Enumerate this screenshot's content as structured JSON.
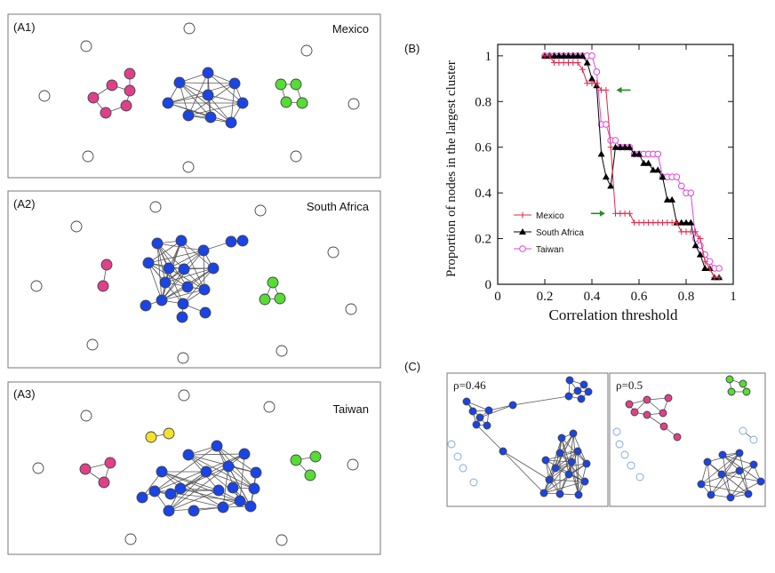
{
  "panels": {
    "a1": {
      "label": "(A1)",
      "country": "Mexico"
    },
    "a2": {
      "label": "(A2)",
      "country": "South Africa"
    },
    "a3": {
      "label": "(A3)",
      "country": "Taiwan"
    },
    "b": {
      "label": "(B)"
    },
    "c": {
      "label": "(C)",
      "sub_left": "ρ=0.46",
      "sub_right": "ρ=0.5"
    }
  },
  "colors": {
    "mexico": "#e0284a",
    "south_africa": "#000000",
    "taiwan": "#dd44dd",
    "cluster_blue": "#1a44e6",
    "cluster_pink": "#e0408a",
    "cluster_green": "#55dd33",
    "cluster_yellow": "#f2e22a",
    "isolated_light_blue": "#7ea8d8",
    "arrow_green": "#2a8a2a"
  },
  "chart_data": {
    "type": "line",
    "title": "",
    "xlabel": "Correlation threshold",
    "ylabel": "Proportion of nodes in the largest cluster",
    "xlim": [
      0,
      1
    ],
    "ylim": [
      0,
      1.05
    ],
    "xticks": [
      0,
      0.2,
      0.4,
      0.6,
      0.8,
      1
    ],
    "xtick_labels": [
      "0",
      "0.2",
      "0.4",
      "0.6",
      "0.8",
      "1"
    ],
    "yticks": [
      0,
      0.2,
      0.4,
      0.6,
      0.8,
      1
    ],
    "ytick_labels": [
      "0",
      "0.2",
      "0.4",
      "0.6",
      "0.8",
      "1"
    ],
    "legend_position": "lower-left",
    "annotations": [
      {
        "type": "arrow",
        "x": 0.5,
        "y": 0.85,
        "direction": "left"
      },
      {
        "type": "arrow",
        "x": 0.46,
        "y": 0.31,
        "direction": "right"
      }
    ],
    "series": [
      {
        "name": "Mexico",
        "marker": "plus",
        "x": [
          0.2,
          0.22,
          0.24,
          0.26,
          0.28,
          0.3,
          0.32,
          0.34,
          0.36,
          0.38,
          0.4,
          0.42,
          0.44,
          0.46,
          0.48,
          0.5,
          0.52,
          0.54,
          0.56,
          0.58,
          0.6,
          0.62,
          0.64,
          0.66,
          0.68,
          0.7,
          0.72,
          0.74,
          0.76,
          0.78,
          0.8,
          0.82,
          0.84,
          0.86,
          0.88,
          0.9,
          0.92,
          0.94
        ],
        "y": [
          1.0,
          1.0,
          0.97,
          0.97,
          0.97,
          0.97,
          0.97,
          0.97,
          0.94,
          0.88,
          0.88,
          0.88,
          0.85,
          0.85,
          0.6,
          0.31,
          0.31,
          0.31,
          0.31,
          0.27,
          0.27,
          0.27,
          0.27,
          0.27,
          0.27,
          0.27,
          0.27,
          0.27,
          0.27,
          0.23,
          0.23,
          0.23,
          0.23,
          0.2,
          0.1,
          0.07,
          0.03,
          0.03
        ]
      },
      {
        "name": "South Africa",
        "marker": "triangle",
        "x": [
          0.2,
          0.22,
          0.24,
          0.26,
          0.28,
          0.3,
          0.32,
          0.34,
          0.36,
          0.38,
          0.4,
          0.42,
          0.44,
          0.46,
          0.48,
          0.5,
          0.52,
          0.54,
          0.56,
          0.58,
          0.6,
          0.62,
          0.64,
          0.66,
          0.68,
          0.7,
          0.72,
          0.74,
          0.76,
          0.78,
          0.8,
          0.82,
          0.84,
          0.86,
          0.88,
          0.9,
          0.92,
          0.94
        ],
        "y": [
          1.0,
          1.0,
          1.0,
          1.0,
          1.0,
          1.0,
          1.0,
          1.0,
          1.0,
          0.97,
          0.9,
          0.87,
          0.57,
          0.47,
          0.43,
          0.6,
          0.6,
          0.6,
          0.6,
          0.57,
          0.57,
          0.53,
          0.53,
          0.5,
          0.5,
          0.47,
          0.37,
          0.37,
          0.27,
          0.27,
          0.27,
          0.27,
          0.17,
          0.13,
          0.07,
          0.07,
          0.03,
          0.03
        ]
      },
      {
        "name": "Taiwan",
        "marker": "circle",
        "x": [
          0.2,
          0.22,
          0.24,
          0.26,
          0.28,
          0.3,
          0.32,
          0.34,
          0.36,
          0.38,
          0.4,
          0.42,
          0.44,
          0.46,
          0.48,
          0.5,
          0.52,
          0.54,
          0.56,
          0.58,
          0.6,
          0.62,
          0.64,
          0.66,
          0.68,
          0.7,
          0.72,
          0.74,
          0.76,
          0.78,
          0.8,
          0.82,
          0.84,
          0.86,
          0.88,
          0.9,
          0.92,
          0.94
        ],
        "y": [
          1.0,
          1.0,
          1.0,
          1.0,
          1.0,
          1.0,
          1.0,
          1.0,
          1.0,
          1.0,
          1.0,
          0.93,
          0.7,
          0.7,
          0.63,
          0.63,
          0.6,
          0.6,
          0.6,
          0.57,
          0.57,
          0.57,
          0.57,
          0.57,
          0.57,
          0.47,
          0.47,
          0.47,
          0.47,
          0.43,
          0.4,
          0.4,
          0.2,
          0.17,
          0.13,
          0.1,
          0.07,
          0.07
        ]
      }
    ]
  }
}
